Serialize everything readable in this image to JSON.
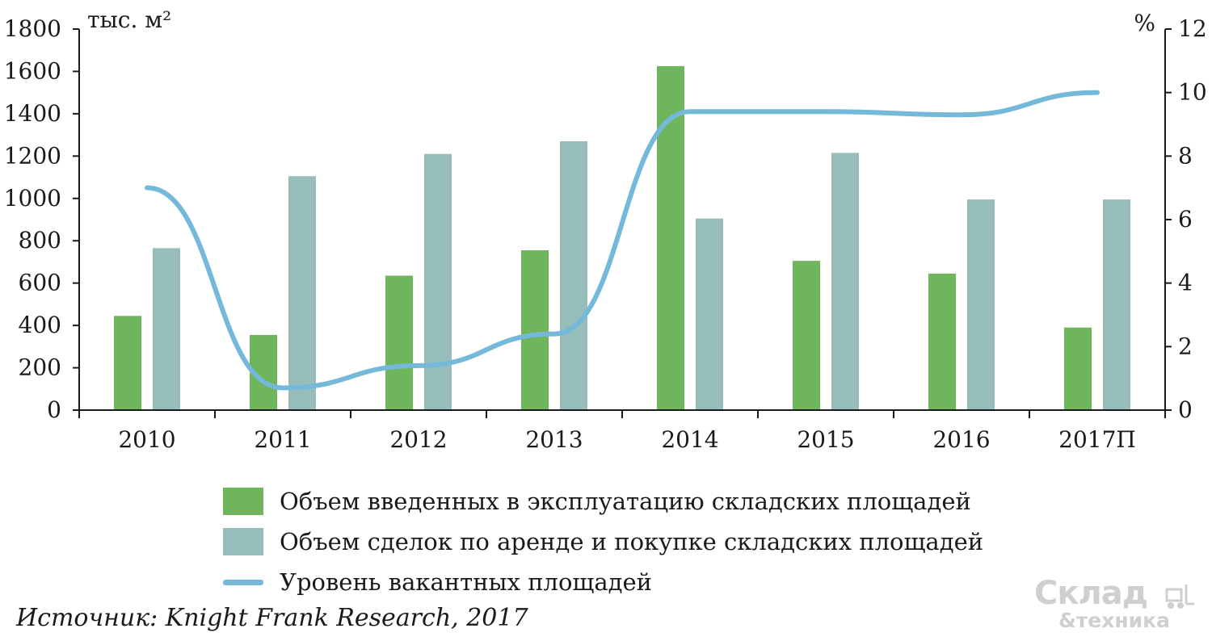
{
  "chart_data": {
    "type": "bar",
    "categories": [
      "2010",
      "2011",
      "2012",
      "2013",
      "2014",
      "2015",
      "2016",
      "2017П"
    ],
    "series": [
      {
        "name": "Объем введенных в эксплуатацию складских площадей",
        "type": "bar",
        "axis": "left",
        "color": "#6fb55b",
        "values": [
          445,
          355,
          635,
          755,
          1625,
          705,
          645,
          390
        ]
      },
      {
        "name": "Объем сделок по аренде и покупке складских площадей",
        "type": "bar",
        "axis": "left",
        "color": "#96bdb9",
        "values": [
          765,
          1105,
          1210,
          1270,
          905,
          1215,
          995,
          995
        ]
      },
      {
        "name": "Уровень вакантных площадей",
        "type": "line",
        "axis": "right",
        "color": "#74b8da",
        "values": [
          7.0,
          0.7,
          1.4,
          2.4,
          9.4,
          9.4,
          9.3,
          10.0
        ]
      }
    ],
    "y_left": {
      "unit": "тыс. м²",
      "ylim": [
        0,
        1800
      ],
      "ticks": [
        0,
        200,
        400,
        600,
        800,
        1000,
        1200,
        1400,
        1600,
        1800
      ]
    },
    "y_right": {
      "unit": "%",
      "ylim": [
        0,
        12
      ],
      "ticks": [
        0,
        2,
        4,
        6,
        8,
        10,
        12
      ]
    },
    "grid": false,
    "legend": "bottom"
  },
  "legend": [
    {
      "label": "Объем введенных в эксплуатацию складских площадей",
      "kind": "bar",
      "color": "#6fb55b"
    },
    {
      "label": "Объем сделок по аренде и покупке складских площадей",
      "kind": "bar",
      "color": "#96bdb9"
    },
    {
      "label": "Уровень вакантных площадей",
      "kind": "line",
      "color": "#74b8da"
    }
  ],
  "source": "Источник: Knight Frank Research, 2017",
  "logo": {
    "top": "Склад",
    "bottom": "&техника"
  }
}
